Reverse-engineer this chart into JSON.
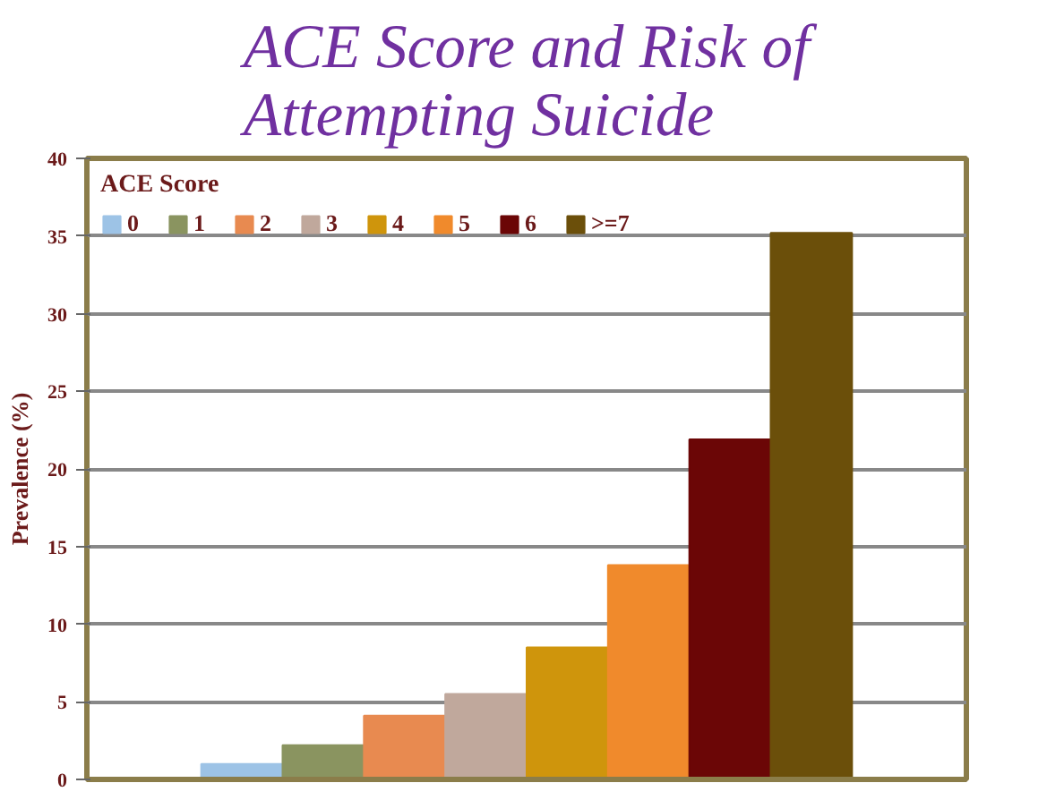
{
  "chart_data": {
    "type": "bar",
    "title": "ACE Score and Risk of\nAttempting Suicide",
    "ylabel": "Prevalence (%)",
    "legend_title": "ACE Score",
    "legend": "top left",
    "categories": [
      null
    ],
    "series": [
      {
        "name": "0",
        "color": "#9dc3e6",
        "values": [
          1.0
        ]
      },
      {
        "name": "1",
        "color": "#8a9460",
        "values": [
          2.2
        ]
      },
      {
        "name": "2",
        "color": "#e88a50",
        "values": [
          4.1
        ]
      },
      {
        "name": "3",
        "color": "#c0a89c",
        "values": [
          5.5
        ]
      },
      {
        "name": "4",
        "color": "#cf950c",
        "values": [
          8.5
        ]
      },
      {
        "name": "5",
        "color": "#f08a2c",
        "values": [
          13.8
        ]
      },
      {
        "name": "6",
        "color": "#6b0606",
        "values": [
          21.9
        ]
      },
      {
        "name": ">=7",
        "color": "#6b4f0a",
        "values": [
          35.2
        ]
      }
    ],
    "ylim": [
      0,
      40
    ],
    "yticks": [
      0,
      5,
      10,
      15,
      20,
      25,
      30,
      35,
      40
    ],
    "grid": "y"
  }
}
